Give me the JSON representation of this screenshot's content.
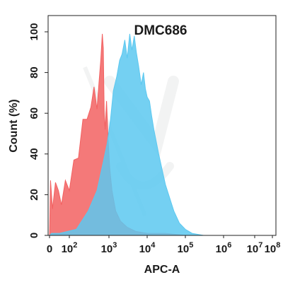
{
  "chart_data": {
    "type": "area",
    "title": "DMC686",
    "xlabel": "APC-A",
    "ylabel": "Count  (%)",
    "x_scale": "biexponential",
    "xlim": [
      0,
      100000000
    ],
    "ylim": [
      0,
      105
    ],
    "y_ticks": [
      {
        "value": 0,
        "label": "0"
      },
      {
        "value": 20,
        "label": "20"
      },
      {
        "value": 40,
        "label": "40"
      },
      {
        "value": 60,
        "label": "60"
      },
      {
        "value": 80,
        "label": "80"
      },
      {
        "value": 100,
        "label": "100"
      }
    ],
    "x_ticks": [
      {
        "value": 0,
        "base": "0",
        "exp": ""
      },
      {
        "value": 100,
        "base": "10",
        "exp": "2"
      },
      {
        "value": 1000,
        "base": "10",
        "exp": "3"
      },
      {
        "value": 10000,
        "base": "10",
        "exp": "4"
      },
      {
        "value": 100000,
        "base": "10",
        "exp": "5"
      },
      {
        "value": 1000000,
        "base": "10",
        "exp": "6"
      },
      {
        "value": 10000000,
        "base": "10",
        "exp": "7"
      },
      {
        "value": 100000000,
        "base": "10",
        "exp": "8"
      }
    ],
    "grid": false,
    "legend": "none",
    "series": [
      {
        "color": "#f26161",
        "opacity": 0.85,
        "x": [
          0,
          5,
          15,
          30,
          45,
          60,
          80,
          100,
          130,
          170,
          220,
          280,
          350,
          420,
          500,
          560,
          620,
          680,
          720,
          760,
          800,
          870,
          950,
          1050,
          1200,
          1500,
          2000,
          3000,
          5000,
          10000,
          30000,
          100000
        ],
        "y": [
          0,
          27,
          13,
          26,
          22,
          15,
          27,
          22,
          37,
          38,
          57,
          57,
          63,
          73,
          62,
          75,
          86,
          99,
          92,
          60,
          52,
          66,
          47,
          33,
          22,
          12,
          7,
          4,
          2,
          1,
          1,
          0
        ]
      },
      {
        "color": "#5cc8f0",
        "opacity": 0.85,
        "x": [
          0,
          10,
          50,
          150,
          300,
          500,
          700,
          900,
          1100,
          1300,
          1600,
          1900,
          2200,
          2600,
          3000,
          3500,
          4000,
          4600,
          5200,
          6000,
          7000,
          8000,
          9000,
          10000,
          11500,
          13000,
          15000,
          20000,
          30000,
          50000,
          70000,
          100000,
          150000,
          300000
        ],
        "y": [
          0,
          1,
          1,
          3,
          12,
          22,
          35,
          45,
          57,
          71,
          78,
          86,
          89,
          96,
          87,
          99,
          91,
          98,
          90,
          83,
          74,
          80,
          72,
          68,
          66,
          59,
          52,
          40,
          25,
          12,
          6,
          3,
          1,
          0
        ]
      }
    ]
  }
}
